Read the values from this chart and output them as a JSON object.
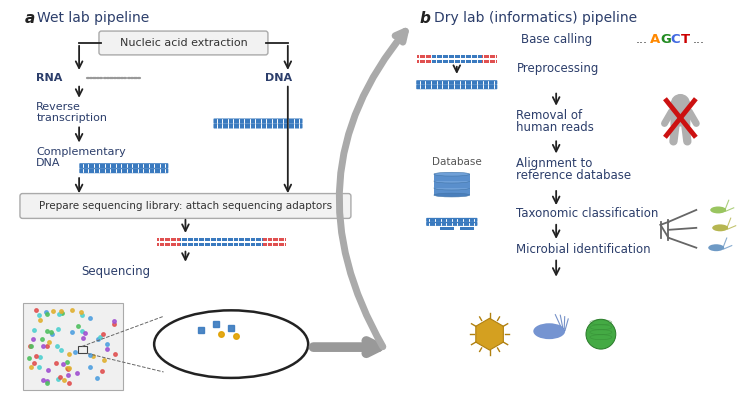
{
  "bg_color": "#ffffff",
  "title_a": "Wet lab pipeline",
  "title_b": "Dry lab (informatics) pipeline",
  "label_a": "a",
  "label_b": "b",
  "text_color": "#2c3e6b",
  "arrow_color": "#222222",
  "blue_dna": "#3a7abf",
  "red_adaptor": "#e05050",
  "rna_color": "#999999",
  "agct_colors": [
    "#ff8800",
    "#228b22",
    "#4169e1",
    "#cc0000"
  ],
  "agct_letters": [
    "A",
    "G",
    "C",
    "T"
  ],
  "dot_colors": [
    "#e05050",
    "#50a0e0",
    "#50c060",
    "#e0b030",
    "#a050d0",
    "#50d0d0"
  ]
}
